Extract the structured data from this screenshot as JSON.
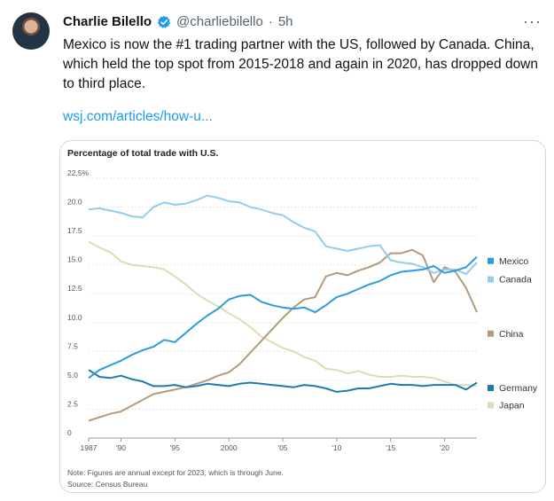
{
  "tweet": {
    "author_name": "Charlie Bilello",
    "handle": "@charliebilello",
    "separator": "·",
    "time": "5h",
    "more": "···",
    "text": "Mexico is now the #1 trading partner with the US, followed by Canada. China, which held the top spot from 2015-2018 and again in 2020, has dropped down to third place.",
    "link": "wsj.com/articles/how-u..."
  },
  "icons": {
    "verified": "verified-badge-icon",
    "more": "more-options-icon"
  },
  "chart_data": {
    "type": "line",
    "title": "Percentage of total trade with U.S.",
    "xlim": [
      1987,
      2023
    ],
    "ylim": [
      0,
      22.5
    ],
    "y_ticks": [
      "0",
      "2.5",
      "5.0",
      "7.5",
      "10.0",
      "12.5",
      "15.0",
      "17.5",
      "20.0",
      "22.5%"
    ],
    "x_ticks": [
      {
        "year": 1987,
        "label": "1987"
      },
      {
        "year": 1990,
        "label": "'90"
      },
      {
        "year": 1995,
        "label": "'95"
      },
      {
        "year": 2000,
        "label": "2000"
      },
      {
        "year": 2005,
        "label": "'05"
      },
      {
        "year": 2010,
        "label": "'10"
      },
      {
        "year": 2015,
        "label": "'15"
      },
      {
        "year": 2020,
        "label": "'20"
      }
    ],
    "grid": true,
    "legend": "right",
    "x": [
      1987,
      1988,
      1989,
      1990,
      1991,
      1992,
      1993,
      1994,
      1995,
      1996,
      1997,
      1998,
      1999,
      2000,
      2001,
      2002,
      2003,
      2004,
      2005,
      2006,
      2007,
      2008,
      2009,
      2010,
      2011,
      2012,
      2013,
      2014,
      2015,
      2016,
      2017,
      2018,
      2019,
      2020,
      2021,
      2022,
      2023
    ],
    "series": [
      {
        "name": "Mexico",
        "color": "#2d9be0",
        "values": [
          5.2,
          5.9,
          6.3,
          6.7,
          7.2,
          7.6,
          7.9,
          8.5,
          8.3,
          9.1,
          9.9,
          10.6,
          11.2,
          12.0,
          12.3,
          12.4,
          11.8,
          11.5,
          11.3,
          11.2,
          11.3,
          10.9,
          11.5,
          12.2,
          12.5,
          12.9,
          13.3,
          13.6,
          14.1,
          14.4,
          14.5,
          14.6,
          14.9,
          14.3,
          14.5,
          14.8,
          15.7
        ]
      },
      {
        "name": "Canada",
        "color": "#96cbec",
        "values": [
          19.8,
          19.9,
          19.7,
          19.5,
          19.2,
          19.1,
          20.0,
          20.4,
          20.2,
          20.3,
          20.6,
          21.0,
          20.8,
          20.5,
          20.4,
          20.0,
          19.8,
          19.5,
          19.3,
          18.7,
          18.2,
          17.9,
          16.6,
          16.4,
          16.2,
          16.4,
          16.6,
          16.7,
          15.4,
          15.2,
          15.1,
          14.8,
          14.3,
          14.6,
          14.6,
          14.2,
          15.2
        ]
      },
      {
        "name": "China",
        "color": "#b39a7a",
        "values": [
          1.5,
          1.8,
          2.1,
          2.3,
          2.8,
          3.3,
          3.8,
          4.0,
          4.2,
          4.4,
          4.7,
          5.0,
          5.4,
          5.7,
          6.4,
          7.4,
          8.4,
          9.4,
          10.4,
          11.3,
          12.0,
          12.2,
          14.0,
          14.3,
          14.1,
          14.5,
          14.8,
          15.2,
          16.0,
          16.0,
          16.3,
          15.8,
          13.5,
          14.8,
          14.4,
          13.0,
          10.9
        ]
      },
      {
        "name": "Germany",
        "color": "#1f7aaf",
        "values": [
          5.9,
          5.3,
          5.2,
          5.4,
          5.1,
          4.9,
          4.5,
          4.5,
          4.6,
          4.4,
          4.5,
          4.7,
          4.6,
          4.5,
          4.7,
          4.8,
          4.7,
          4.6,
          4.5,
          4.4,
          4.6,
          4.5,
          4.3,
          4.0,
          4.1,
          4.3,
          4.3,
          4.5,
          4.7,
          4.6,
          4.6,
          4.5,
          4.6,
          4.6,
          4.6,
          4.2,
          4.8
        ]
      },
      {
        "name": "Japan",
        "color": "#dcdcb8",
        "values": [
          17.0,
          16.5,
          16.1,
          15.3,
          15.0,
          14.9,
          14.8,
          14.6,
          14.0,
          13.3,
          12.5,
          11.9,
          11.4,
          10.8,
          10.3,
          9.6,
          8.8,
          8.3,
          7.8,
          7.5,
          7.0,
          6.7,
          6.0,
          5.9,
          5.6,
          5.8,
          5.5,
          5.3,
          5.3,
          5.4,
          5.3,
          5.3,
          5.2,
          4.9,
          4.6,
          4.6,
          4.5
        ]
      }
    ],
    "legend_entries": [
      {
        "name": "Mexico",
        "color": "#2d9be0"
      },
      {
        "name": "Canada",
        "color": "#96cbec"
      },
      {
        "name": "China",
        "color": "#b39a7a"
      },
      {
        "name": "Germany",
        "color": "#1f7aaf"
      },
      {
        "name": "Japan",
        "color": "#dcdcb8"
      }
    ],
    "note": "Note: Figures are annual except for 2023, which is through June.",
    "source": "Source: Census Bureau"
  }
}
